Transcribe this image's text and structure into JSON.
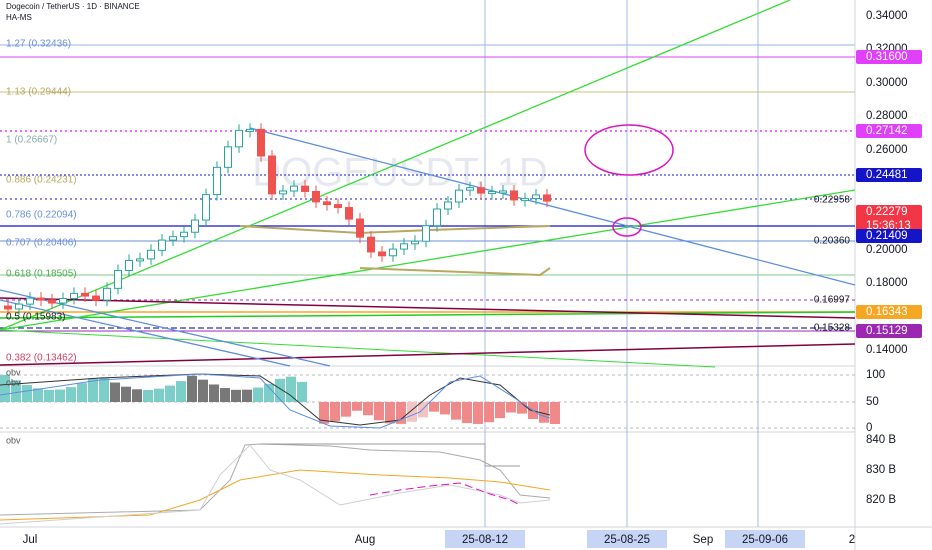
{
  "header": {
    "title": "Dogecoin / TetherUS · 1D · BINANCE",
    "indicator": "HA-MS",
    "watermark": "DOGEUSDT, 1D"
  },
  "price_axis": [
    "0.34000",
    "0.32000",
    "0.30000",
    "0.28000",
    "0.26000",
    "0.20000",
    "0.18000",
    "0.14000"
  ],
  "price_tags": [
    {
      "label": "0.31600",
      "color": "#e040fb"
    },
    {
      "label": "0.27142",
      "color": "#e040fb"
    },
    {
      "label": "0.24481",
      "color": "#1515c8"
    },
    {
      "label": "0.22279",
      "sub": "15:36:13",
      "color": "#f23645"
    },
    {
      "label": "0.21409",
      "color": "#1515c8"
    },
    {
      "label": "0.16343",
      "color": "#f5a623"
    },
    {
      "label": "0.15129",
      "color": "#9c27b0"
    }
  ],
  "fib_levels": [
    "1.27 (0.32436)",
    "1.13 (0.29444)",
    "1 (0.26667)",
    "0.886 (0.24231)",
    "0.786 (0.22094)",
    "0.707 (0.20406)",
    "0.618 (0.18505)",
    "0.5 (0.15983)",
    "0.382 (0.13462)"
  ],
  "line_labels": [
    "0.22958",
    "0.20360",
    "0.16997",
    "0.15328"
  ],
  "oscillator": {
    "labels": [
      "obv",
      "obv"
    ],
    "axis": [
      "100",
      "50",
      "0"
    ]
  },
  "obv_pane": {
    "label": "obv",
    "axis": [
      "840 B",
      "830 B",
      "820 B"
    ]
  },
  "time_axis": [
    "Jul",
    "Aug",
    "25-08-12",
    "25-08-25",
    "Sep",
    "25-09-06",
    "2"
  ]
}
